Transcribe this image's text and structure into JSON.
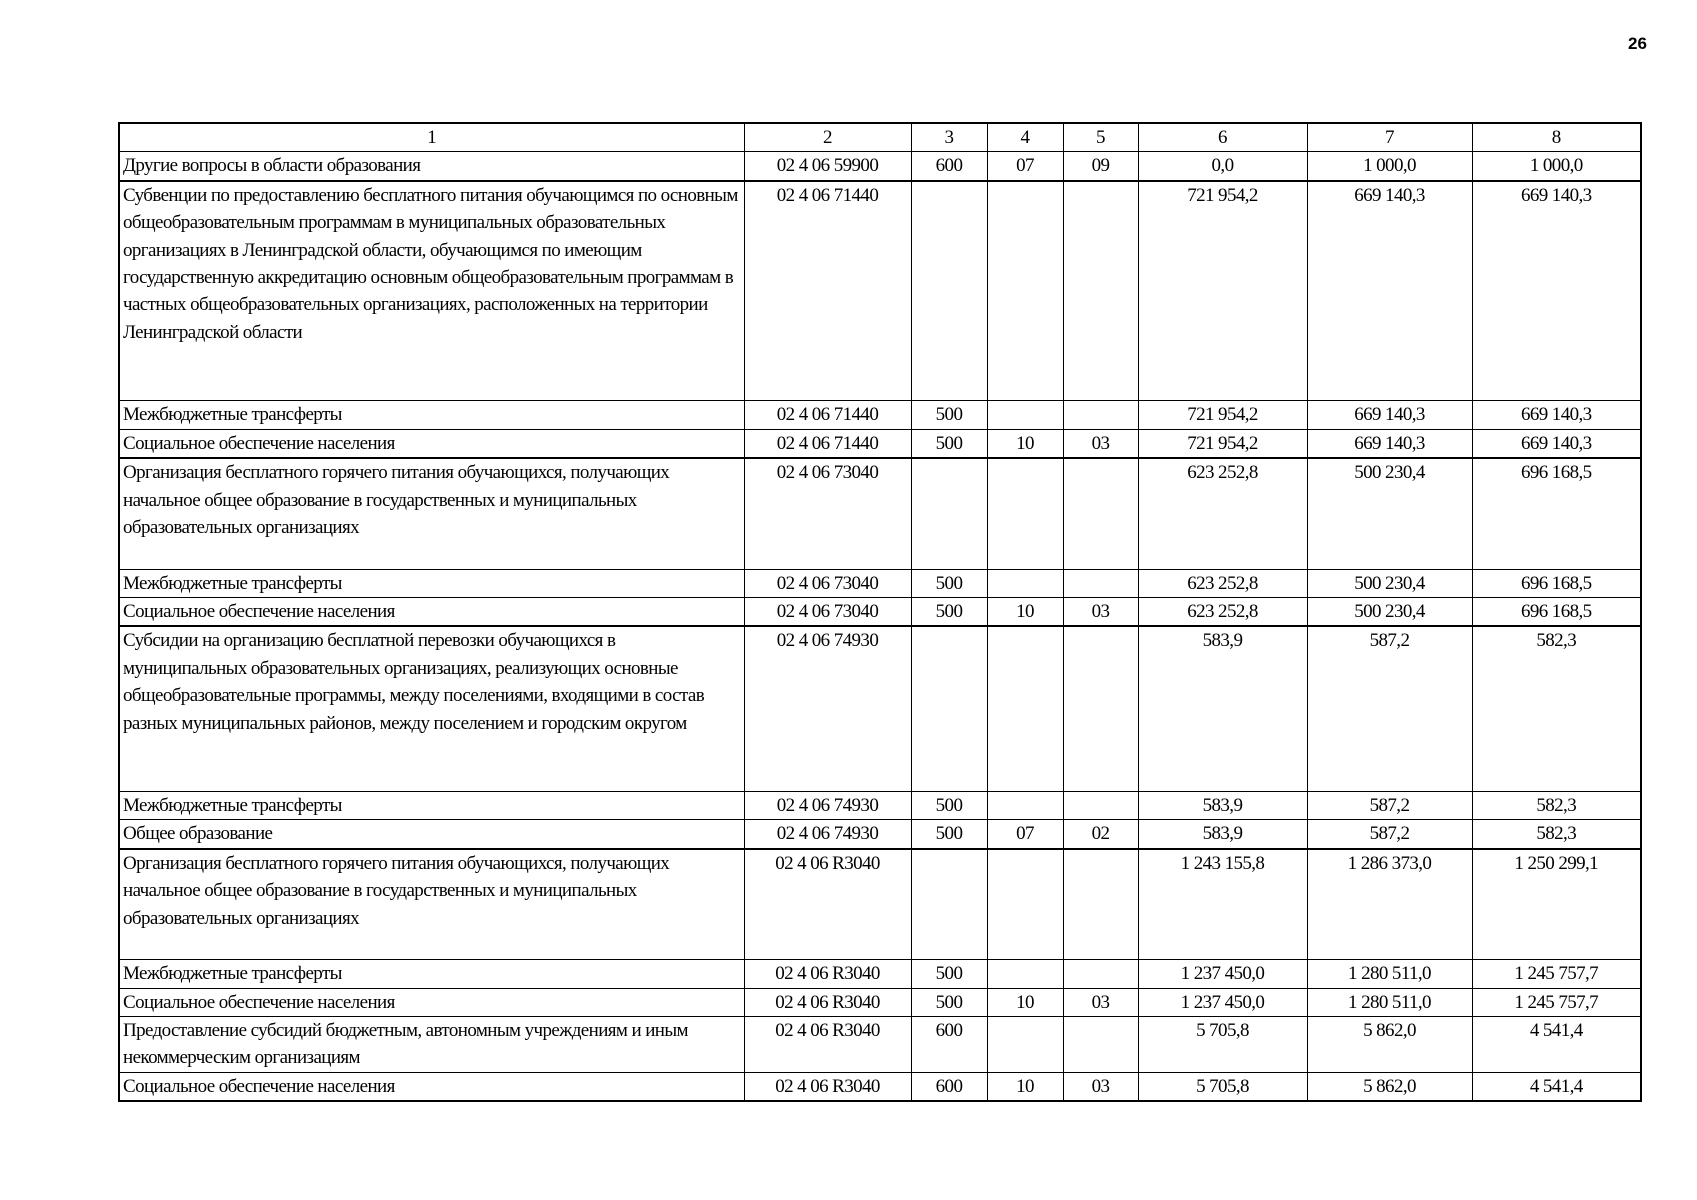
{
  "page_number": "26",
  "table": {
    "header": [
      "1",
      "2",
      "3",
      "4",
      "5",
      "6",
      "7",
      "8"
    ],
    "rows": [
      [
        "Другие вопросы в области образования",
        "02 4 06 59900",
        "600",
        "07",
        "09",
        "0,0",
        "1 000,0",
        "1 000,0"
      ],
      [
        "Субвенции по предоставлению бесплатного питания обучающимся по основным общеобразовательным программам в муниципальных образовательных организациях в Ленинградской области, обучающимся по имеющим государственную аккредитацию основным общеобразовательным программам в частных общеобразовательных организациях, расположенных на территории Ленинградской области",
        "02 4 06 71440",
        "",
        "",
        "",
        "721 954,2",
        "669 140,3",
        "669 140,3"
      ],
      [
        "Межбюджетные трансферты",
        "02 4 06 71440",
        "500",
        "",
        "",
        "721 954,2",
        "669 140,3",
        "669 140,3"
      ],
      [
        "Социальное обеспечение населения",
        "02 4 06 71440",
        "500",
        "10",
        "03",
        "721 954,2",
        "669 140,3",
        "669 140,3"
      ],
      [
        "Организация бесплатного горячего питания обучающихся, получающих начальное общее образование в государственных и муниципальных образовательных организациях",
        "02 4 06 73040",
        "",
        "",
        "",
        "623 252,8",
        "500 230,4",
        "696 168,5"
      ],
      [
        "Межбюджетные трансферты",
        "02 4 06 73040",
        "500",
        "",
        "",
        "623 252,8",
        "500 230,4",
        "696 168,5"
      ],
      [
        "Социальное обеспечение населения",
        "02 4 06 73040",
        "500",
        "10",
        "03",
        "623 252,8",
        "500 230,4",
        "696 168,5"
      ],
      [
        "Субсидии на организацию бесплатной перевозки обучающихся в муниципальных образовательных организациях, реализующих основные общеобразовательные программы, между поселениями, входящими в состав разных муниципальных районов, между поселением и городским округом",
        "02 4 06 74930",
        "",
        "",
        "",
        "583,9",
        "587,2",
        "582,3"
      ],
      [
        "Межбюджетные трансферты",
        "02 4 06 74930",
        "500",
        "",
        "",
        "583,9",
        "587,2",
        "582,3"
      ],
      [
        "Общее образование",
        "02 4 06 74930",
        "500",
        "07",
        "02",
        "583,9",
        "587,2",
        "582,3"
      ],
      [
        "Организация бесплатного горячего питания обучающихся, получающих начальное общее образование в государственных и муниципальных образовательных организациях",
        "02 4 06 R3040",
        "",
        "",
        "",
        "1 243 155,8",
        "1 286 373,0",
        "1 250 299,1"
      ],
      [
        "Межбюджетные трансферты",
        "02 4 06 R3040",
        "500",
        "",
        "",
        "1 237 450,0",
        "1 280 511,0",
        "1 245 757,7"
      ],
      [
        "Социальное обеспечение населения",
        "02 4 06 R3040",
        "500",
        "10",
        "03",
        "1 237 450,0",
        "1 280 511,0",
        "1 245 757,7"
      ],
      [
        "Предоставление субсидий бюджетным, автономным учреждениям и иным некоммерческим организациям",
        "02 4 06 R3040",
        "600",
        "",
        "",
        "5 705,8",
        "5 862,0",
        "4 541,4"
      ],
      [
        "Социальное обеспечение населения",
        "02 4 06 R3040",
        "600",
        "10",
        "03",
        "5 705,8",
        "5 862,0",
        "4 541,4"
      ]
    ]
  }
}
